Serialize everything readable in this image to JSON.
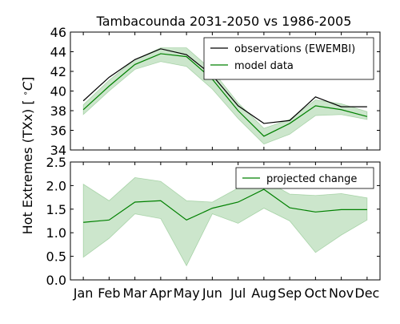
{
  "chart_data": {
    "type": "line",
    "title": "Tambacounda 2031-2050 vs 1986-2005",
    "ylabel": "Hot Extremes (TXx) [$^\\circ C$]",
    "categories": [
      "Jan",
      "Feb",
      "Mar",
      "Apr",
      "May",
      "Jun",
      "Jul",
      "Aug",
      "Sep",
      "Oct",
      "Nov",
      "Dec"
    ],
    "panels": [
      {
        "ylim": [
          34,
          46
        ],
        "yticks": [
          "34",
          "36",
          "38",
          "40",
          "42",
          "44",
          "46"
        ],
        "yticks_values": [
          34,
          36,
          38,
          40,
          42,
          44,
          46
        ],
        "legend_position": "top-right",
        "series": [
          {
            "name": "observations (EWEMBI)",
            "color": "#000000",
            "values": [
              39.0,
              41.4,
              43.2,
              44.3,
              43.7,
              41.6,
              38.5,
              36.7,
              37.0,
              39.4,
              38.4,
              38.4
            ]
          },
          {
            "name": "model data",
            "color": "#008000",
            "values": [
              38.1,
              40.5,
              42.7,
              43.8,
              43.5,
              41.2,
              38.0,
              35.4,
              36.7,
              38.5,
              38.1,
              37.4
            ]
          }
        ],
        "band": {
          "color": "#008000",
          "lower": [
            37.6,
            40.0,
            42.2,
            43.0,
            42.5,
            40.2,
            37.2,
            34.6,
            35.6,
            37.5,
            37.6,
            37.1
          ],
          "upper": [
            38.6,
            41.1,
            43.2,
            44.4,
            44.4,
            42.1,
            38.8,
            36.2,
            37.1,
            39.1,
            38.7,
            37.9
          ]
        }
      },
      {
        "ylim": [
          0.0,
          2.5
        ],
        "yticks": [
          "0.0",
          "0.5",
          "1.0",
          "1.5",
          "2.0",
          "2.5"
        ],
        "yticks_values": [
          0.0,
          0.5,
          1.0,
          1.5,
          2.0,
          2.5
        ],
        "legend_position": "top-right",
        "series": [
          {
            "name": "projected change",
            "color": "#008000",
            "values": [
              1.22,
              1.27,
              1.65,
              1.68,
              1.27,
              1.52,
              1.65,
              1.92,
              1.53,
              1.44,
              1.49,
              1.49
            ]
          }
        ],
        "band": {
          "color": "#008000",
          "lower": [
            0.48,
            0.88,
            1.4,
            1.3,
            0.3,
            1.4,
            1.2,
            1.52,
            1.25,
            0.58,
            0.95,
            1.27
          ],
          "upper": [
            2.03,
            1.68,
            2.17,
            2.09,
            1.68,
            1.65,
            1.95,
            2.13,
            1.82,
            1.79,
            1.83,
            1.74
          ]
        }
      }
    ]
  }
}
